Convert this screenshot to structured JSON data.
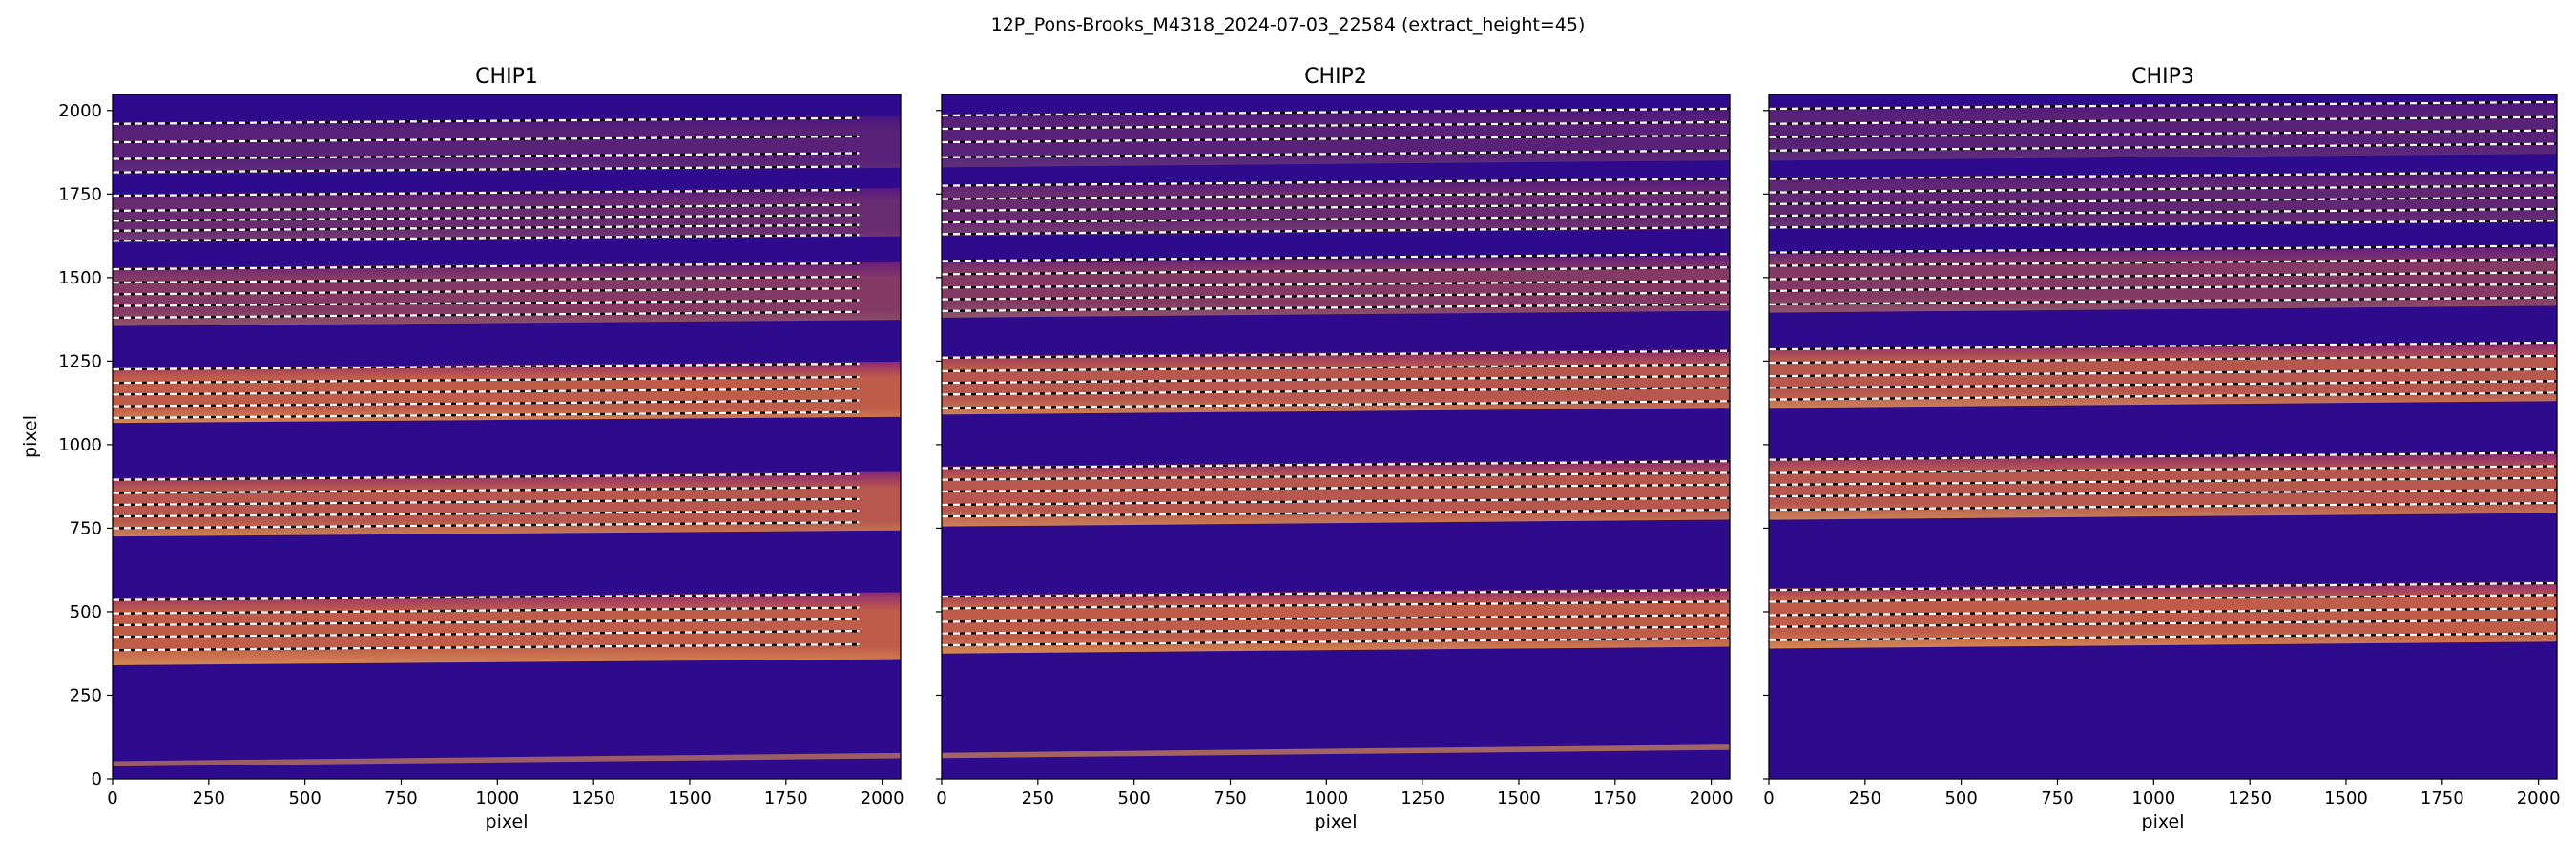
{
  "figure": {
    "suptitle": "12P_Pons-Brooks_M4318_2024-07-03_22584  (extract_height=45)"
  },
  "colors": {
    "background": "#2e0a8c",
    "band_center": "#d96a3e",
    "band_edge": "#a0306e",
    "band_bright": "#f2a04a",
    "dashed_white": "#ffffff",
    "dashed_black": "#000000"
  },
  "chart_data": [
    {
      "type": "heatmap",
      "title": "CHIP1",
      "xlabel": "pixel",
      "ylabel": "pixel",
      "xlim": [
        0,
        2048
      ],
      "ylim": [
        0,
        2048
      ],
      "xticks": [
        0,
        250,
        500,
        750,
        1000,
        1250,
        1500,
        1750,
        2000
      ],
      "yticks": [
        0,
        250,
        500,
        750,
        1000,
        1250,
        1500,
        1750,
        2000
      ],
      "colormap": "plasma",
      "orders": [
        {
          "bottom": 340,
          "top": 540,
          "slope": 0.009,
          "intensity": 0.85
        },
        {
          "bottom": 725,
          "top": 900,
          "slope": 0.009,
          "intensity": 0.8
        },
        {
          "bottom": 1065,
          "top": 1230,
          "slope": 0.009,
          "intensity": 0.85
        },
        {
          "bottom": 1355,
          "top": 1530,
          "slope": 0.009,
          "intensity": 0.5
        },
        {
          "bottom": 1605,
          "top": 1750,
          "slope": 0.009,
          "intensity": 0.35
        },
        {
          "bottom": 1810,
          "top": 1965,
          "slope": 0.009,
          "intensity": 0.25
        }
      ],
      "bottom_strip": {
        "y": 45,
        "intensity": 0.7
      },
      "extraction_lines": [
        [
          1960,
          1905,
          1855,
          1815
        ],
        [
          1745,
          1700,
          1670,
          1640,
          1610
        ],
        [
          1525,
          1485,
          1450,
          1415,
          1380
        ],
        [
          1225,
          1185,
          1150,
          1115,
          1080
        ],
        [
          895,
          855,
          820,
          785,
          750
        ],
        [
          535,
          495,
          460,
          425,
          385
        ]
      ],
      "line_slope": 0.009,
      "line_end": 1940
    },
    {
      "type": "heatmap",
      "title": "CHIP2",
      "xlabel": "pixel",
      "ylabel": "",
      "xlim": [
        0,
        2048
      ],
      "ylim": [
        0,
        2048
      ],
      "xticks": [
        0,
        250,
        500,
        750,
        1000,
        1250,
        1500,
        1750,
        2000
      ],
      "yticks": [
        0,
        250,
        500,
        750,
        1000,
        1250,
        1500,
        1750,
        2000
      ],
      "colormap": "plasma",
      "orders": [
        {
          "bottom": 375,
          "top": 550,
          "slope": 0.01,
          "intensity": 0.85
        },
        {
          "bottom": 755,
          "top": 935,
          "slope": 0.01,
          "intensity": 0.8
        },
        {
          "bottom": 1090,
          "top": 1265,
          "slope": 0.01,
          "intensity": 0.8
        },
        {
          "bottom": 1380,
          "top": 1545,
          "slope": 0.01,
          "intensity": 0.5
        },
        {
          "bottom": 1625,
          "top": 1775,
          "slope": 0.01,
          "intensity": 0.35
        },
        {
          "bottom": 1830,
          "top": 1990,
          "slope": 0.01,
          "intensity": 0.25
        }
      ],
      "bottom_strip": {
        "y": 70,
        "intensity": 0.75
      },
      "extraction_lines": [
        [
          1985,
          1945,
          1905,
          1860
        ],
        [
          1775,
          1735,
          1700,
          1665,
          1630
        ],
        [
          1550,
          1510,
          1470,
          1435,
          1400
        ],
        [
          1260,
          1220,
          1185,
          1150,
          1110
        ],
        [
          930,
          895,
          860,
          820,
          785
        ],
        [
          545,
          510,
          470,
          435,
          400
        ]
      ],
      "line_slope": 0.01,
      "line_end": 2048
    },
    {
      "type": "heatmap",
      "title": "CHIP3",
      "xlabel": "pixel",
      "ylabel": "",
      "xlim": [
        0,
        2048
      ],
      "ylim": [
        0,
        2048
      ],
      "xticks": [
        0,
        250,
        500,
        750,
        1000,
        1250,
        1500,
        1750,
        2000
      ],
      "yticks": [
        0,
        250,
        500,
        750,
        1000,
        1250,
        1500,
        1750,
        2000
      ],
      "colormap": "plasma",
      "orders": [
        {
          "bottom": 390,
          "top": 570,
          "slope": 0.01,
          "intensity": 0.85
        },
        {
          "bottom": 775,
          "top": 955,
          "slope": 0.01,
          "intensity": 0.8
        },
        {
          "bottom": 1110,
          "top": 1285,
          "slope": 0.01,
          "intensity": 0.8
        },
        {
          "bottom": 1395,
          "top": 1570,
          "slope": 0.01,
          "intensity": 0.5
        },
        {
          "bottom": 1645,
          "top": 1800,
          "slope": 0.01,
          "intensity": 0.3
        },
        {
          "bottom": 1850,
          "top": 2010,
          "slope": 0.01,
          "intensity": 0.25
        }
      ],
      "bottom_strip": null,
      "extraction_lines": [
        [
          2005,
          1960,
          1920,
          1880
        ],
        [
          1795,
          1755,
          1720,
          1685,
          1650
        ],
        [
          1575,
          1535,
          1495,
          1460,
          1420
        ],
        [
          1285,
          1245,
          1205,
          1170,
          1135
        ],
        [
          955,
          915,
          880,
          845,
          805
        ],
        [
          565,
          530,
          490,
          455,
          415
        ]
      ],
      "line_slope": 0.01,
      "line_end": 2048
    }
  ]
}
